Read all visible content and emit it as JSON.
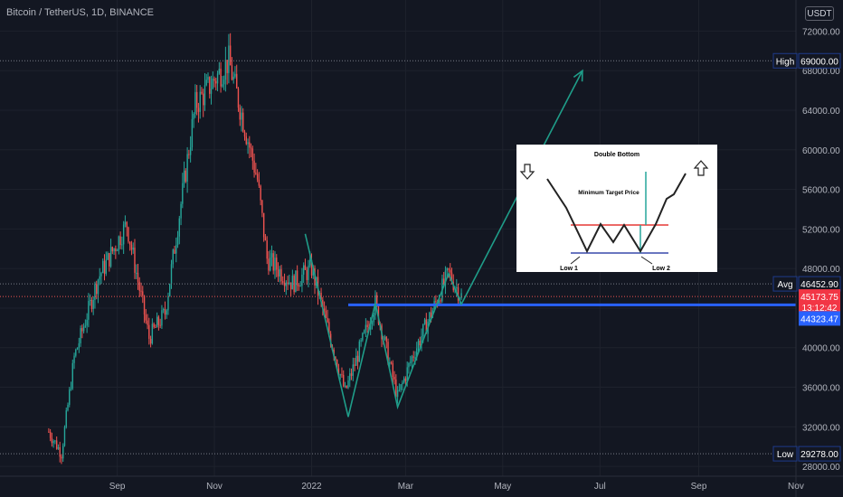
{
  "header": {
    "symbol": "Bitcoin / TetherUS, 1D, BINANCE",
    "currency": "USDT"
  },
  "colors": {
    "background": "#131722",
    "up": "#26a69a",
    "down": "#ef5350",
    "pattern": "#1f9d89",
    "support": "#2962ff",
    "grid": "#1e222d"
  },
  "markers": [
    {
      "label": "High",
      "value": "69000.00",
      "price": 69000,
      "style": "dark"
    },
    {
      "label": "Avg",
      "value": "46452.90",
      "price": 46452.9,
      "style": "dark"
    },
    {
      "label": "",
      "value": "45173.75",
      "sub": "13:12:42",
      "price": 45173.75,
      "style": "red"
    },
    {
      "label": "",
      "value": "44323.47",
      "price": 44323.47,
      "style": "blue"
    },
    {
      "label": "Low",
      "value": "29278.00",
      "price": 29278,
      "style": "dark"
    }
  ],
  "inset": {
    "title": "Double Bottom",
    "target_label": "Minimum Target Price",
    "low1_label": "Low 1",
    "low2_label": "Low 2",
    "down_arrow": "down-arrow-icon",
    "up_arrow": "up-arrow-icon"
  },
  "chart_data": {
    "type": "candlestick",
    "x_ticks": [
      "Sep",
      "Nov",
      "2022",
      "Mar",
      "May",
      "Jul",
      "Sep",
      "Nov"
    ],
    "y_ticks": [
      "28000.00",
      "32000.00",
      "36000.00",
      "40000.00",
      "44000.00",
      "48000.00",
      "52000.00",
      "56000.00",
      "60000.00",
      "64000.00",
      "68000.00",
      "72000.00"
    ],
    "y_range": [
      26000,
      73500
    ],
    "price_path": [
      [
        "2021-07-20",
        31500
      ],
      [
        "2021-07-28",
        29300
      ],
      [
        "2021-08-05",
        39000
      ],
      [
        "2021-08-20",
        47000
      ],
      [
        "2021-09-07",
        52500
      ],
      [
        "2021-09-21",
        41000
      ],
      [
        "2021-10-01",
        43500
      ],
      [
        "2021-10-20",
        64500
      ],
      [
        "2021-11-10",
        69000
      ],
      [
        "2021-11-28",
        57000
      ],
      [
        "2021-12-04",
        49000
      ],
      [
        "2021-12-20",
        46500
      ],
      [
        "2022-01-01",
        48000
      ],
      [
        "2022-01-22",
        35500
      ],
      [
        "2022-02-10",
        44500
      ],
      [
        "2022-02-24",
        35000
      ],
      [
        "2022-03-05",
        39000
      ],
      [
        "2022-03-28",
        47500
      ],
      [
        "2022-04-05",
        45200
      ]
    ],
    "pattern_line": [
      [
        "2021-12-28",
        51500
      ],
      [
        "2022-01-24",
        33000
      ],
      [
        "2022-02-10",
        44500
      ],
      [
        "2022-02-24",
        34000
      ],
      [
        "2022-03-28",
        47500
      ],
      [
        "2022-04-05",
        44400
      ],
      [
        "2022-06-20",
        68000
      ]
    ],
    "support_level": 44323.47
  }
}
